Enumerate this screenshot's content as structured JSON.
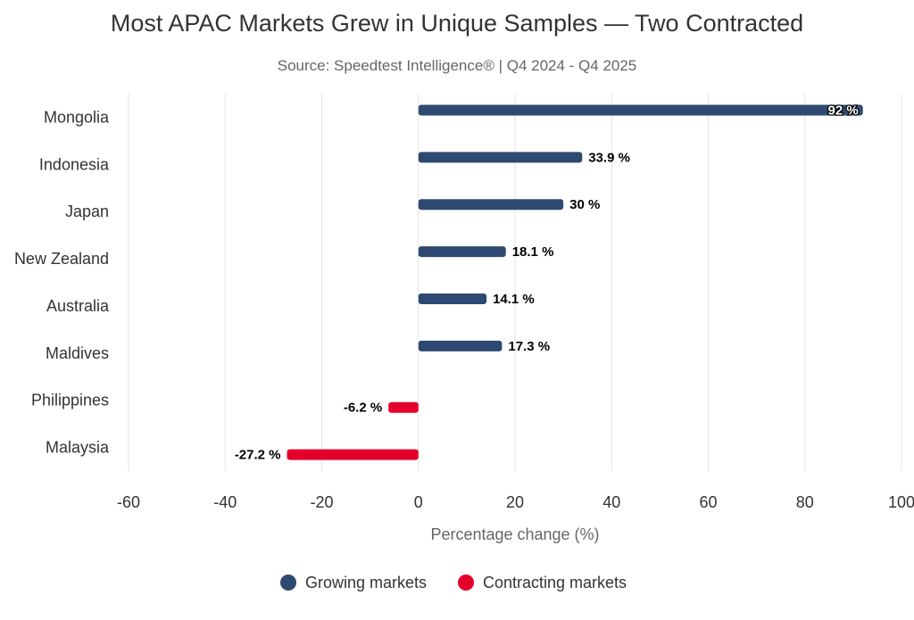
{
  "chart_data": {
    "type": "bar",
    "orientation": "horizontal",
    "title": "Most APAC Markets Grew in Unique Samples — Two Contracted",
    "subtitle": "Source: Speedtest Intelligence® | Q4 2024 - Q4 2025",
    "xlabel": "Percentage change (%)",
    "ylabel": "",
    "xlim": [
      -60,
      100
    ],
    "xticks": [
      -60,
      -40,
      -20,
      0,
      20,
      40,
      60,
      80,
      100
    ],
    "grid": true,
    "legend_position": "bottom",
    "categories": [
      "Mongolia",
      "Indonesia",
      "Japan",
      "New Zealand",
      "Australia",
      "Maldives",
      "Philippines",
      "Malaysia"
    ],
    "series": [
      {
        "name": "Growing markets",
        "color": "#2e4a72",
        "values": [
          92,
          33.9,
          30,
          18.1,
          14.1,
          17.3,
          null,
          null
        ],
        "labels": [
          "92 %",
          "33.9 %",
          "30 %",
          "18.1 %",
          "14.1 %",
          "17.3 %",
          null,
          null
        ]
      },
      {
        "name": "Contracting markets",
        "color": "#e4002b",
        "values": [
          null,
          null,
          null,
          null,
          null,
          null,
          -6.2,
          -27.2
        ],
        "labels": [
          null,
          null,
          null,
          null,
          null,
          null,
          "-6.2 %",
          "-27.2 %"
        ]
      }
    ]
  }
}
